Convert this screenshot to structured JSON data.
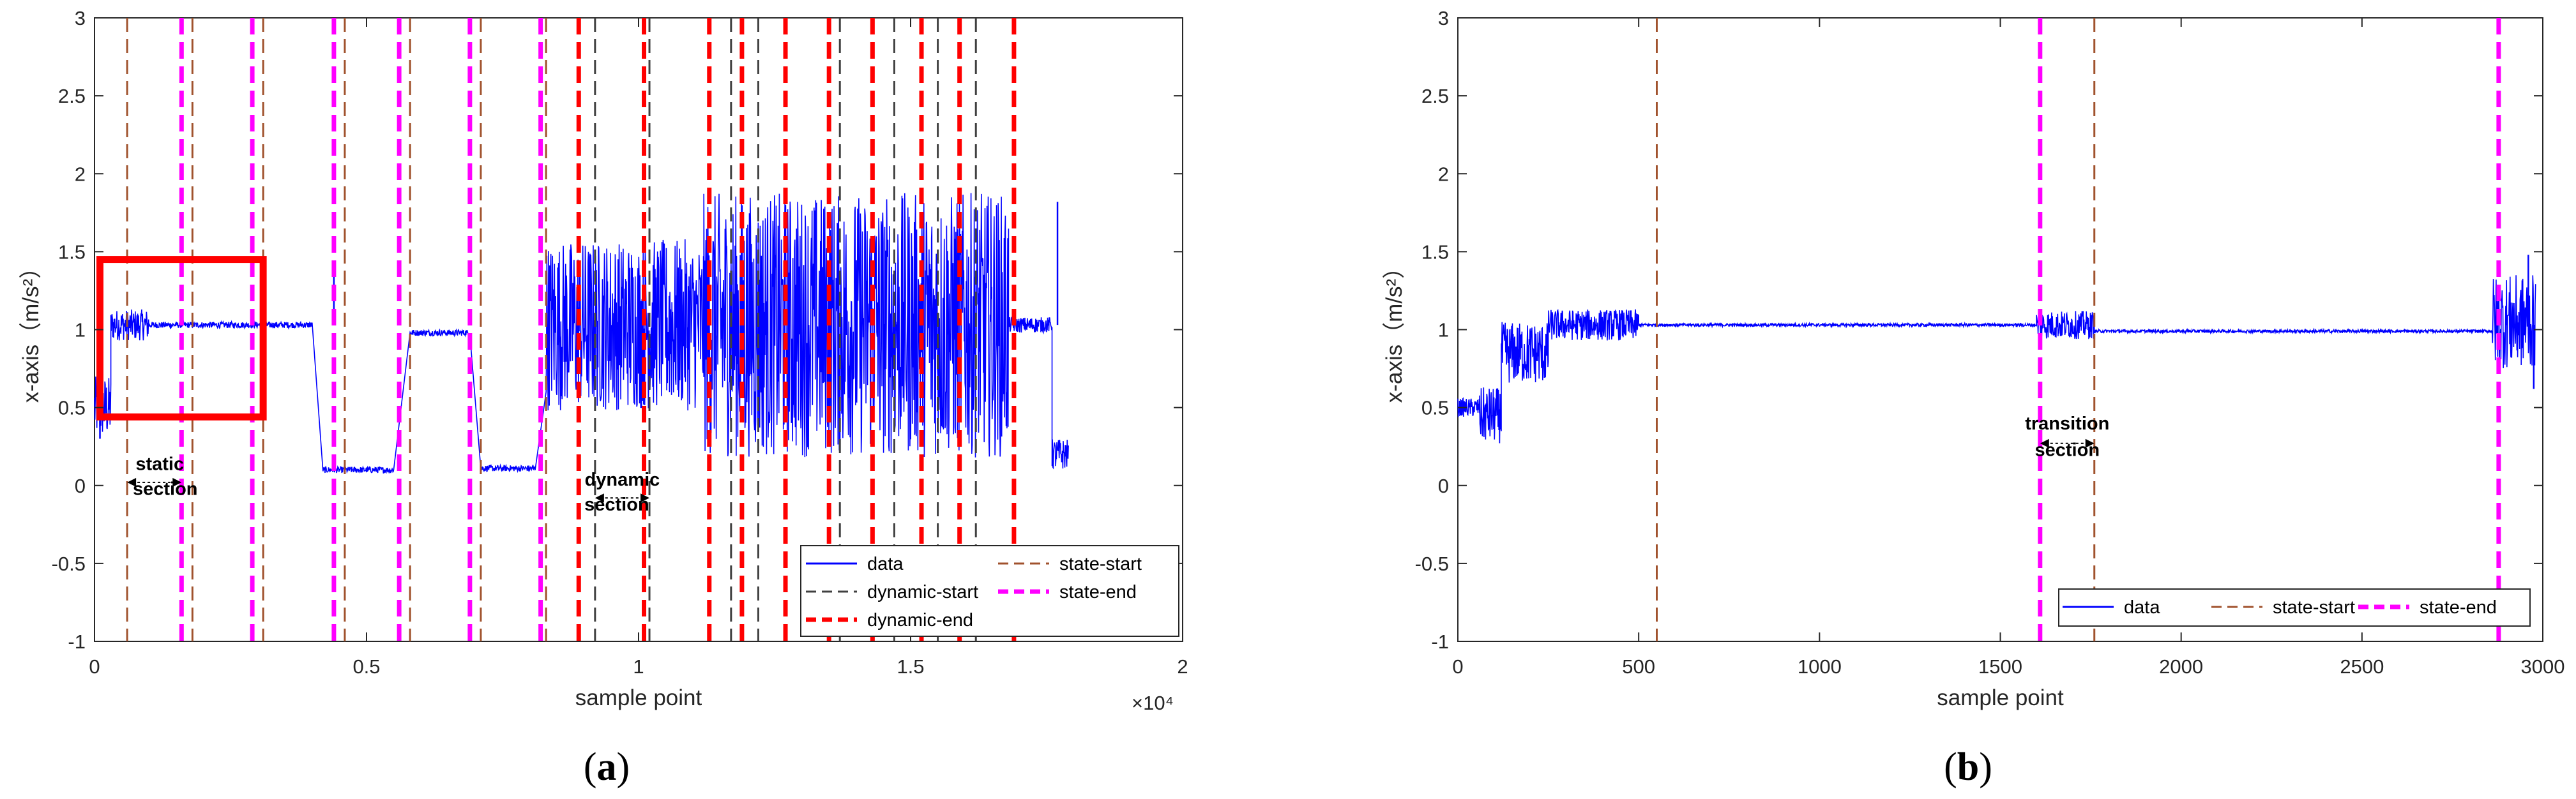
{
  "chart_data": [
    {
      "type": "line",
      "panel_label": "a",
      "xlabel": "sample point",
      "ylabel": "x-axis（m/s²）",
      "x_exponent_label": "×10⁴",
      "xlim": [
        0,
        2
      ],
      "ylim": [
        -1,
        3
      ],
      "xticks": [
        0,
        0.5,
        1,
        1.5,
        2
      ],
      "xtick_labels": [
        "0",
        "0.5",
        "1",
        "1.5",
        "2"
      ],
      "yticks": [
        -1,
        -0.5,
        0,
        0.5,
        1,
        1.5,
        2,
        2.5,
        3
      ],
      "ytick_labels": [
        "-1",
        "-0.5",
        "0",
        "0.5",
        "1",
        "1.5",
        "2",
        "2.5",
        "3"
      ],
      "grid": false,
      "legend_position": "bottom-right",
      "legend": [
        {
          "label": "data",
          "style": "data"
        },
        {
          "label": "state-start",
          "style": "state-start"
        },
        {
          "label": "dynamic-start",
          "style": "dynamic-start"
        },
        {
          "label": "state-end",
          "style": "state-end"
        },
        {
          "label": "dynamic-end",
          "style": "dynamic-end"
        }
      ],
      "segments": [
        {
          "x0": 0,
          "x1": 0.03,
          "base": 0.5,
          "amp": 0.2
        },
        {
          "x0": 0.03,
          "x1": 0.1,
          "base": 1.03,
          "amp": 0.1
        },
        {
          "x0": 0.1,
          "x1": 0.4,
          "base": 1.03,
          "amp": 0.02
        },
        {
          "x0": 0.42,
          "x1": 0.55,
          "base": 0.1,
          "amp": 0.02
        },
        {
          "x0": 0.58,
          "x1": 0.69,
          "base": 0.98,
          "amp": 0.02
        },
        {
          "x0": 0.71,
          "x1": 0.81,
          "base": 0.11,
          "amp": 0.02
        },
        {
          "x0": 0.83,
          "x1": 1.12,
          "base": 1.03,
          "amp": 0.55
        },
        {
          "x0": 1.12,
          "x1": 1.68,
          "base": 1.03,
          "amp": 0.85
        },
        {
          "x0": 1.68,
          "x1": 1.76,
          "base": 1.03,
          "amp": 0.05
        },
        {
          "x0": 1.76,
          "x1": 1.79,
          "base": 0.2,
          "amp": 0.1
        }
      ],
      "spikes": [
        {
          "x": 0.01,
          "y": 0.3
        },
        {
          "x": 0.44,
          "y": 1.42
        },
        {
          "x": 1.77,
          "y": 1.82
        }
      ],
      "vlines": {
        "state-start": [
          0.06,
          0.18,
          0.31,
          0.46,
          0.58,
          0.71,
          0.83
        ],
        "state-end": [
          0.16,
          0.29,
          0.44,
          0.56,
          0.69,
          0.82
        ],
        "dynamic-start": [
          0.92,
          1.02,
          1.17,
          1.22,
          1.37,
          1.47,
          1.55,
          1.62
        ],
        "dynamic-end": [
          0.89,
          1.01,
          1.13,
          1.19,
          1.27,
          1.35,
          1.43,
          1.52,
          1.59,
          1.69
        ]
      },
      "highlight_box": {
        "x0": 0.01,
        "x1": 0.31,
        "y0": 0.44,
        "y1": 1.45,
        "color": "#ff0000"
      },
      "annotations": [
        {
          "text": "static",
          "x": 0.12,
          "y": 0.1
        },
        {
          "text": "section",
          "x": 0.13,
          "y": -0.06
        },
        {
          "text": "dynamic",
          "x": 0.97,
          "y": 0.0
        },
        {
          "text": "section",
          "x": 0.96,
          "y": -0.16
        }
      ],
      "arrows": [
        {
          "x0": 0.06,
          "x1": 0.16,
          "y": 0.02
        },
        {
          "x0": 0.92,
          "x1": 1.02,
          "y": -0.08
        }
      ]
    },
    {
      "type": "line",
      "panel_label": "b",
      "xlabel": "sample point",
      "ylabel": "x-axis（m/s²）",
      "xlim": [
        0,
        3000
      ],
      "ylim": [
        -1,
        3
      ],
      "xticks": [
        0,
        500,
        1000,
        1500,
        2000,
        2500,
        3000
      ],
      "xtick_labels": [
        "0",
        "500",
        "1000",
        "1500",
        "2000",
        "2500",
        "3000"
      ],
      "yticks": [
        -1,
        -0.5,
        0,
        0.5,
        1,
        1.5,
        2,
        2.5,
        3
      ],
      "ytick_labels": [
        "-1",
        "-0.5",
        "0",
        "0.5",
        "1",
        "1.5",
        "2",
        "2.5",
        "3"
      ],
      "grid": false,
      "legend_position": "bottom-right",
      "legend": [
        {
          "label": "data",
          "style": "data"
        },
        {
          "label": "state-start",
          "style": "state-start"
        },
        {
          "label": "state-end",
          "style": "state-end"
        }
      ],
      "segments": [
        {
          "x0": 0,
          "x1": 60,
          "base": 0.5,
          "amp": 0.06
        },
        {
          "x0": 60,
          "x1": 120,
          "base": 0.45,
          "amp": 0.18
        },
        {
          "x0": 120,
          "x1": 250,
          "base": 0.85,
          "amp": 0.2
        },
        {
          "x0": 250,
          "x1": 500,
          "base": 1.03,
          "amp": 0.1
        },
        {
          "x0": 500,
          "x1": 1600,
          "base": 1.03,
          "amp": 0.01
        },
        {
          "x0": 1600,
          "x1": 1760,
          "base": 1.03,
          "amp": 0.09
        },
        {
          "x0": 1760,
          "x1": 2860,
          "base": 0.99,
          "amp": 0.01
        },
        {
          "x0": 2860,
          "x1": 2980,
          "base": 1.05,
          "amp": 0.3
        }
      ],
      "spikes": [
        {
          "x": 2960,
          "y": 1.48
        },
        {
          "x": 2975,
          "y": 0.62
        }
      ],
      "vlines": {
        "state-start": [
          550,
          1760
        ],
        "state-end": [
          1610,
          2878
        ]
      },
      "annotations": [
        {
          "text": "transition",
          "x": 1685,
          "y": 0.36
        },
        {
          "text": "section",
          "x": 1685,
          "y": 0.19
        }
      ],
      "arrows": [
        {
          "x0": 1610,
          "x1": 1760,
          "y": 0.27
        }
      ]
    }
  ],
  "styles": {
    "data": "#0000ff",
    "state-start": "#a0522d",
    "state-end": "#ff00ff",
    "dynamic-start": "#404040",
    "dynamic-end": "#ff0000"
  }
}
